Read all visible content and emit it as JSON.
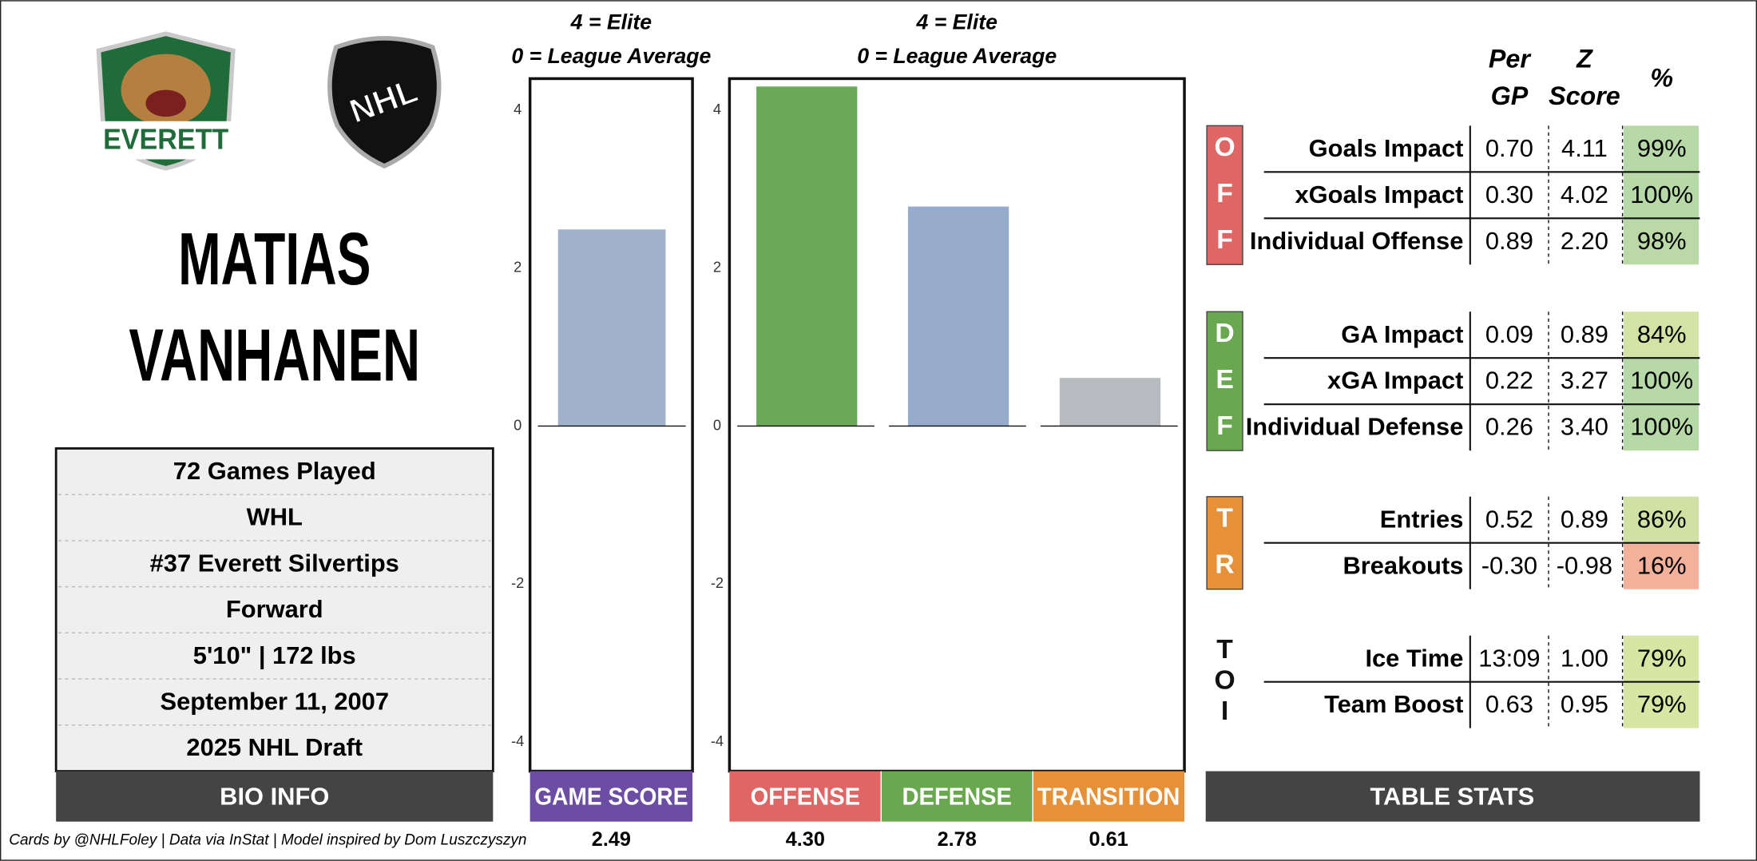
{
  "header": {
    "first_name": "MATIAS",
    "last_name": "VANHANEN"
  },
  "logos": {
    "team_text": "EVERETT",
    "league_text": "NHL"
  },
  "bio": {
    "rows": [
      "72 Games Played",
      "WHL",
      "#37 Everett Silvertips",
      "Forward",
      "5'10\" | 172 lbs",
      "September 11, 2007",
      "2025 NHL Draft"
    ],
    "label": "BIO INFO"
  },
  "chart_data": [
    {
      "type": "bar",
      "notes": [
        "4 = Elite",
        "0 = League Average"
      ],
      "categories": [
        "GAME SCORE"
      ],
      "values": [
        2.49
      ],
      "colors": [
        "#a0b1cb"
      ],
      "label_colors": [
        "#6b4ea3"
      ],
      "ylim": [
        -4.37,
        4.4
      ],
      "yticks": [
        -4,
        -2,
        0,
        2,
        4
      ]
    },
    {
      "type": "bar",
      "notes": [
        "4 = Elite",
        "0 = League Average"
      ],
      "categories": [
        "OFFENSE",
        "DEFENSE",
        "TRANSITION"
      ],
      "values": [
        4.3,
        2.78,
        0.61
      ],
      "value_labels": [
        "4.30",
        "2.78",
        "0.61"
      ],
      "colors": [
        "#6aa85a",
        "#97abcc",
        "#b8bbbf"
      ],
      "label_colors": [
        "#e06666",
        "#6aa84f",
        "#e69138"
      ],
      "ylim": [
        -4.37,
        4.4
      ],
      "yticks": [
        -4,
        -2,
        0,
        2,
        4
      ]
    }
  ],
  "table": {
    "columns": [
      [
        "Per",
        "GP"
      ],
      [
        "Z",
        "Score"
      ],
      [
        "%"
      ]
    ],
    "label": "TABLE STATS",
    "sections": [
      {
        "letters": [
          "O",
          "F",
          "F"
        ],
        "color": "#e06666",
        "rows": [
          {
            "name": "Goals Impact",
            "per_gp": "0.70",
            "z": "4.11",
            "pct": "99%",
            "color": "#b7d9a8"
          },
          {
            "name": "xGoals Impact",
            "per_gp": "0.30",
            "z": "4.02",
            "pct": "100%",
            "color": "#b7d9a8"
          },
          {
            "name": "Individual Offense",
            "per_gp": "0.89",
            "z": "2.20",
            "pct": "98%",
            "color": "#bad9a6"
          }
        ]
      },
      {
        "letters": [
          "D",
          "E",
          "F"
        ],
        "color": "#6aa84f",
        "rows": [
          {
            "name": "GA Impact",
            "per_gp": "0.09",
            "z": "0.89",
            "pct": "84%",
            "color": "#d2e3a5"
          },
          {
            "name": "xGA Impact",
            "per_gp": "0.22",
            "z": "3.27",
            "pct": "100%",
            "color": "#b7d9a8"
          },
          {
            "name": "Individual Defense",
            "per_gp": "0.26",
            "z": "3.40",
            "pct": "100%",
            "color": "#b7d9a8"
          }
        ]
      },
      {
        "letters": [
          "T",
          "R"
        ],
        "color": "#e69138",
        "rows": [
          {
            "name": "Entries",
            "per_gp": "0.52",
            "z": "0.89",
            "pct": "86%",
            "color": "#cfe2a4"
          },
          {
            "name": "Breakouts",
            "per_gp": "-0.30",
            "z": "-0.98",
            "pct": "16%",
            "color": "#f3b19b"
          }
        ]
      },
      {
        "letters": [
          "T",
          "O",
          "I"
        ],
        "rows": [
          {
            "name": "Ice Time",
            "per_gp": "13:09",
            "z": "1.00",
            "pct": "79%",
            "color": "#d8e6a4"
          },
          {
            "name": "Team Boost",
            "per_gp": "0.63",
            "z": "0.95",
            "pct": "79%",
            "color": "#d8e6a4"
          }
        ]
      }
    ]
  },
  "footer": "Cards by @NHLFoley | Data via InStat | Model inspired by Dom Luszczyszyn"
}
